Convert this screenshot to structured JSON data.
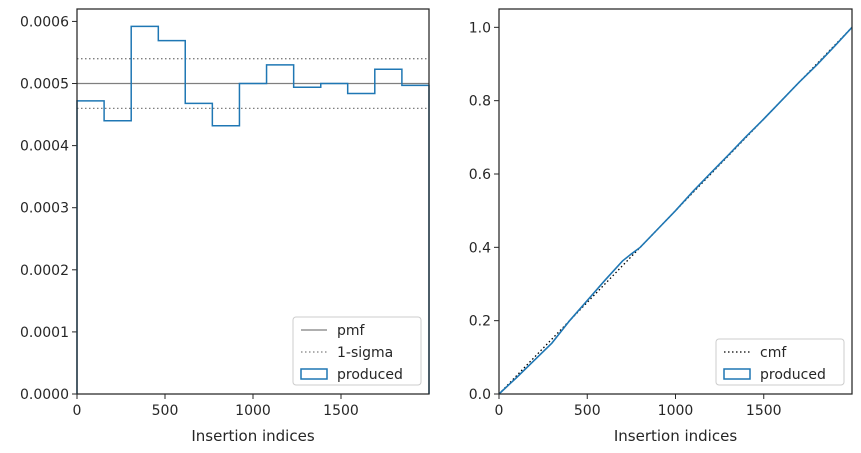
{
  "colors": {
    "produced": "#1f77b4",
    "pmf": "#7f7f7f",
    "sigma": "#7f7f7f",
    "cmf": "#000000",
    "axes": "#262626"
  },
  "chart_data": [
    {
      "type": "histogram-step",
      "xlabel": "Insertion indices",
      "ylabel": "",
      "xlim": [
        0,
        2000
      ],
      "ylim": [
        0,
        0.00062
      ],
      "xticks": [
        0,
        500,
        1000,
        1500
      ],
      "xtick_labels": [
        "0",
        "500",
        "1000",
        "1500"
      ],
      "yticks": [
        0,
        0.0001,
        0.0002,
        0.0003,
        0.0004,
        0.0005,
        0.0006
      ],
      "ytick_labels": [
        "0.0000",
        "0.0001",
        "0.0002",
        "0.0003",
        "0.0004",
        "0.0005",
        "0.0006"
      ],
      "bin_edges": [
        0,
        154,
        308,
        462,
        615,
        769,
        923,
        1077,
        1231,
        1385,
        1538,
        1692,
        1846,
        2000
      ],
      "values": [
        0.000472,
        0.00044,
        0.000592,
        0.000569,
        0.000468,
        0.000432,
        0.0005,
        0.00053,
        0.000494,
        0.0005,
        0.000484,
        0.000523,
        0.000497
      ],
      "pmf": 0.0005,
      "sigma_band": [
        0.00046,
        0.00054
      ],
      "legend": {
        "position": "lower-right",
        "entries": [
          {
            "label": "pmf",
            "style": "pmf"
          },
          {
            "label": "1-sigma",
            "style": "sigma"
          },
          {
            "label": "produced",
            "style": "produced"
          }
        ]
      }
    },
    {
      "type": "line",
      "xlabel": "Insertion indices",
      "ylabel": "",
      "xlim": [
        0,
        2000
      ],
      "ylim": [
        0,
        1.05
      ],
      "xticks": [
        0,
        500,
        1000,
        1500
      ],
      "xtick_labels": [
        "0",
        "500",
        "1000",
        "1500"
      ],
      "yticks": [
        0,
        0.2,
        0.4,
        0.6,
        0.8,
        1.0
      ],
      "ytick_labels": [
        "0.0",
        "0.2",
        "0.4",
        "0.6",
        "0.8",
        "1.0"
      ],
      "cmf": {
        "x": [
          0,
          2000
        ],
        "y": [
          0,
          1.0
        ]
      },
      "produced": {
        "x": [
          0,
          100,
          200,
          300,
          400,
          500,
          600,
          700,
          750,
          800,
          900,
          1000,
          1100,
          1200,
          1300,
          1400,
          1500,
          1600,
          1700,
          1800,
          1900,
          2000
        ],
        "y": [
          0,
          0.045,
          0.092,
          0.139,
          0.2,
          0.255,
          0.31,
          0.363,
          0.382,
          0.4,
          0.45,
          0.5,
          0.553,
          0.603,
          0.652,
          0.702,
          0.75,
          0.8,
          0.85,
          0.897,
          0.948,
          1.0
        ]
      },
      "legend": {
        "position": "lower-right",
        "entries": [
          {
            "label": "cmf",
            "style": "cmf"
          },
          {
            "label": "produced",
            "style": "produced"
          }
        ]
      }
    }
  ]
}
